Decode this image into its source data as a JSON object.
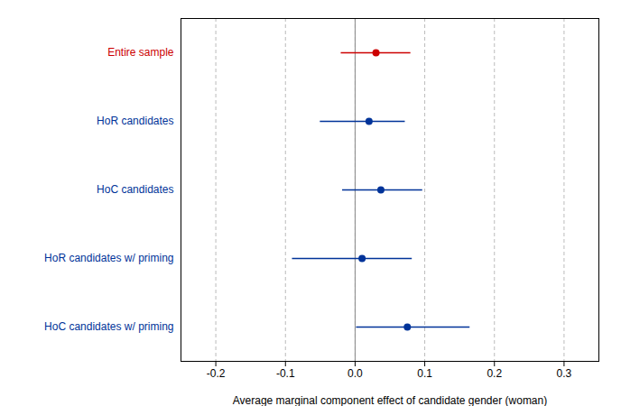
{
  "chart_data": {
    "type": "forest",
    "categories": [
      "Entire sample",
      "HoR candidates",
      "HoC candidates",
      "HoR candidates w/ priming",
      "HoC candidates w/ priming"
    ],
    "values": [
      0.03,
      0.02,
      0.037,
      0.01,
      0.075
    ],
    "ci_low": [
      -0.02,
      -0.05,
      -0.018,
      -0.09,
      0.002
    ],
    "ci_high": [
      0.08,
      0.072,
      0.097,
      0.082,
      0.165
    ],
    "colors": [
      "#cc0000",
      "#003399",
      "#003399",
      "#003399",
      "#003399"
    ],
    "orientation": "horizontal",
    "xlabel": "Average marginal component effect of candidate gender (woman)",
    "xlim": [
      -0.25,
      0.35
    ],
    "xticks": [
      -0.2,
      -0.1,
      {
        "value": 0,
        "label": "0.0"
      },
      0.1,
      0.2,
      0.3
    ],
    "reference_line": 0,
    "grid": true,
    "tick_labels": "x"
  }
}
